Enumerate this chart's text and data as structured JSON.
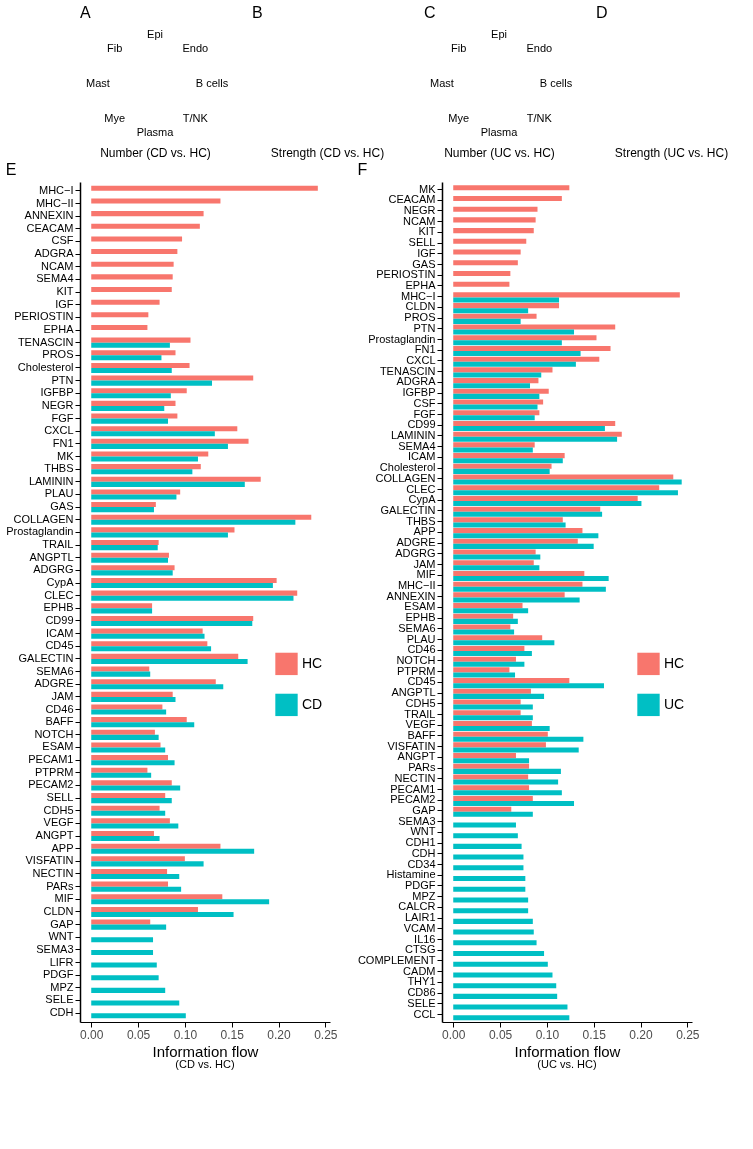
{
  "chart_data": [
    {
      "type": "other",
      "title": "A",
      "xlabel": "Number (CD vs. HC)",
      "categories": [
        "Epi",
        "Endo",
        "B cells",
        "T/NK",
        "Plasma",
        "Mye",
        "Mast",
        "Fib"
      ]
    },
    {
      "type": "other",
      "title": "B",
      "xlabel": "Strength (CD vs. HC)",
      "categories": [
        null,
        null,
        null,
        null,
        null,
        null,
        null,
        null
      ]
    },
    {
      "type": "other",
      "title": "C",
      "xlabel": "Number (UC vs. HC)",
      "categories": [
        "Epi",
        "Endo",
        "B cells",
        "T/NK",
        "Plasma",
        "Mye",
        "Mast",
        "Fib"
      ]
    },
    {
      "type": "other",
      "title": "D",
      "xlabel": "Strength (UC vs. HC)",
      "categories": [
        null,
        null,
        null,
        null,
        null,
        null,
        null,
        null
      ]
    },
    {
      "type": "bar",
      "orientation": "horizontal",
      "title": "E",
      "xlabel": "Information flow",
      "annotations": [
        "(CD vs. HC)"
      ],
      "legend": "right",
      "grid": false,
      "xlim": [
        -0.012,
        0.255
      ],
      "xticks": [
        {
          "value": 0,
          "label": "0.00"
        },
        {
          "value": 0.05,
          "label": "0.05"
        },
        {
          "value": 0.1,
          "label": "0.10"
        },
        {
          "value": 0.15,
          "label": "0.15"
        },
        {
          "value": 0.2,
          "label": "0.20"
        },
        {
          "value": 0.25,
          "label": "0.25"
        }
      ],
      "categories": [
        "MHC−I",
        "MHC−II",
        "ANNEXIN",
        "CEACAM",
        "CSF",
        "ADGRA",
        "NCAM",
        "SEMA4",
        "KIT",
        "IGF",
        "PERIOSTIN",
        "EPHA",
        "TENASCIN",
        "PROS",
        "Cholesterol",
        "PTN",
        "IGFBP",
        "NEGR",
        "FGF",
        "CXCL",
        "FN1",
        "MK",
        "THBS",
        "LAMININ",
        "PLAU",
        "GAS",
        "COLLAGEN",
        "Prostaglandin",
        "TRAIL",
        "ANGPTL",
        "ADGRG",
        "CypA",
        "CLEC",
        "EPHB",
        "CD99",
        "ICAM",
        "CD45",
        "GALECTIN",
        "SEMA6",
        "ADGRE",
        "JAM",
        "CD46",
        "BAFF",
        "NOTCH",
        "ESAM",
        "PECAM1",
        "PTPRM",
        "PECAM2",
        "SELL",
        "CDH5",
        "VEGF",
        "ANGPT",
        "APP",
        "VISFATIN",
        "NECTIN",
        "PARs",
        "MIF",
        "CLDN",
        "GAP",
        "WNT",
        "SEMA3",
        "LIFR",
        "PDGF",
        "MPZ",
        "SELE",
        "CDH"
      ],
      "series": [
        {
          "name": "HC",
          "color": "#f8766d",
          "values": [
            0.242,
            0.138,
            0.12,
            0.116,
            0.097,
            0.092,
            0.088,
            0.087,
            0.086,
            0.073,
            0.061,
            0.06,
            0.106,
            0.09,
            0.105,
            0.173,
            0.102,
            0.09,
            0.092,
            0.156,
            0.168,
            0.125,
            0.117,
            0.181,
            0.095,
            0.069,
            0.235,
            0.153,
            0.072,
            0.083,
            0.089,
            0.198,
            0.22,
            0.065,
            0.173,
            0.119,
            0.124,
            0.157,
            0.062,
            0.133,
            0.087,
            0.076,
            0.102,
            0.068,
            0.074,
            0.082,
            0.06,
            0.086,
            0.079,
            0.073,
            0.084,
            0.067,
            0.138,
            0.1,
            0.081,
            0.082,
            0.14,
            0.114,
            0.063,
            null,
            null,
            null,
            null,
            null,
            null,
            null
          ]
        },
        {
          "name": "CD",
          "color": "#00bfc4",
          "values": [
            null,
            null,
            null,
            null,
            null,
            null,
            null,
            null,
            null,
            null,
            null,
            null,
            0.084,
            0.075,
            0.086,
            0.129,
            0.085,
            0.078,
            0.082,
            0.132,
            0.146,
            0.114,
            0.108,
            0.164,
            0.091,
            0.067,
            0.218,
            0.146,
            0.071,
            0.082,
            0.087,
            0.194,
            0.216,
            0.065,
            0.172,
            0.121,
            0.128,
            0.167,
            0.063,
            0.141,
            0.09,
            0.08,
            0.11,
            0.072,
            0.079,
            0.089,
            0.064,
            0.095,
            0.086,
            0.079,
            0.093,
            0.073,
            0.174,
            0.12,
            0.094,
            0.096,
            0.19,
            0.152,
            0.08,
            0.066,
            0.066,
            0.07,
            0.072,
            0.079,
            0.094,
            0.101
          ]
        }
      ]
    },
    {
      "type": "bar",
      "orientation": "horizontal",
      "title": "F",
      "xlabel": "Information flow",
      "annotations": [
        "(UC vs. HC)"
      ],
      "legend": "right",
      "grid": false,
      "xlim": [
        -0.012,
        0.255
      ],
      "xticks": [
        {
          "value": 0,
          "label": "0.00"
        },
        {
          "value": 0.05,
          "label": "0.05"
        },
        {
          "value": 0.1,
          "label": "0.10"
        },
        {
          "value": 0.15,
          "label": "0.15"
        },
        {
          "value": 0.2,
          "label": "0.20"
        },
        {
          "value": 0.25,
          "label": "0.25"
        }
      ],
      "categories": [
        "MK",
        "CEACAM",
        "NEGR",
        "NCAM",
        "KIT",
        "SELL",
        "IGF",
        "GAS",
        "PERIOSTIN",
        "EPHA",
        "MHC−I",
        "CLDN",
        "PROS",
        "PTN",
        "Prostaglandin",
        "FN1",
        "CXCL",
        "TENASCIN",
        "ADGRA",
        "IGFBP",
        "CSF",
        "FGF",
        "CD99",
        "LAMININ",
        "SEMA4",
        "ICAM",
        "Cholesterol",
        "COLLAGEN",
        "CLEC",
        "CypA",
        "GALECTIN",
        "THBS",
        "APP",
        "ADGRE",
        "ADGRG",
        "JAM",
        "MIF",
        "MHC−II",
        "ANNEXIN",
        "ESAM",
        "EPHB",
        "SEMA6",
        "PLAU",
        "CD46",
        "NOTCH",
        "PTPRM",
        "CD45",
        "ANGPTL",
        "CDH5",
        "TRAIL",
        "VEGF",
        "BAFF",
        "VISFATIN",
        "ANGPT",
        "PARs",
        "NECTIN",
        "PECAM1",
        "PECAM2",
        "GAP",
        "SEMA3",
        "WNT",
        "CDH1",
        "CDH",
        "CD34",
        "Histamine",
        "PDGF",
        "MPZ",
        "CALCR",
        "LAIR1",
        "VCAM",
        "IL16",
        "CTSG",
        "COMPLEMENT",
        "CADM",
        "THY1",
        "CD86",
        "SELE",
        "CCL"
      ],
      "series": [
        {
          "name": "HC",
          "color": "#f8766d",
          "values": [
            0.124,
            0.116,
            0.09,
            0.088,
            0.086,
            0.078,
            0.072,
            0.069,
            0.061,
            0.06,
            0.242,
            0.113,
            0.089,
            0.173,
            0.153,
            0.168,
            0.156,
            0.106,
            0.091,
            0.102,
            0.096,
            0.092,
            0.173,
            0.18,
            0.087,
            0.119,
            0.105,
            0.235,
            0.22,
            0.197,
            0.157,
            0.117,
            0.138,
            0.133,
            0.088,
            0.086,
            0.14,
            0.138,
            0.119,
            0.074,
            0.064,
            0.061,
            0.095,
            0.076,
            0.067,
            0.06,
            0.124,
            0.083,
            0.072,
            0.072,
            0.084,
            0.101,
            0.099,
            0.067,
            0.081,
            0.08,
            0.081,
            0.085,
            0.062,
            null,
            null,
            null,
            null,
            null,
            null,
            null,
            null,
            null,
            null,
            null,
            null,
            null,
            null,
            null,
            null,
            null,
            null,
            null
          ]
        },
        {
          "name": "UC",
          "color": "#00bfc4",
          "values": [
            null,
            null,
            null,
            null,
            null,
            null,
            null,
            null,
            null,
            null,
            0.113,
            0.08,
            0.072,
            0.129,
            0.116,
            0.136,
            0.131,
            0.094,
            0.082,
            0.092,
            0.09,
            0.087,
            0.162,
            0.175,
            0.085,
            0.117,
            0.103,
            0.244,
            0.24,
            0.201,
            0.159,
            0.12,
            0.155,
            0.15,
            0.093,
            0.092,
            0.166,
            0.163,
            0.135,
            0.08,
            0.069,
            0.065,
            0.108,
            0.084,
            0.076,
            0.066,
            0.161,
            0.097,
            0.085,
            0.085,
            0.103,
            0.139,
            0.134,
            0.081,
            0.115,
            0.112,
            0.116,
            0.129,
            0.085,
            0.067,
            0.069,
            0.073,
            0.075,
            0.075,
            0.077,
            0.077,
            0.08,
            0.08,
            0.085,
            0.086,
            0.089,
            0.097,
            0.101,
            0.106,
            0.11,
            0.111,
            0.122,
            0.124
          ]
        }
      ]
    }
  ]
}
